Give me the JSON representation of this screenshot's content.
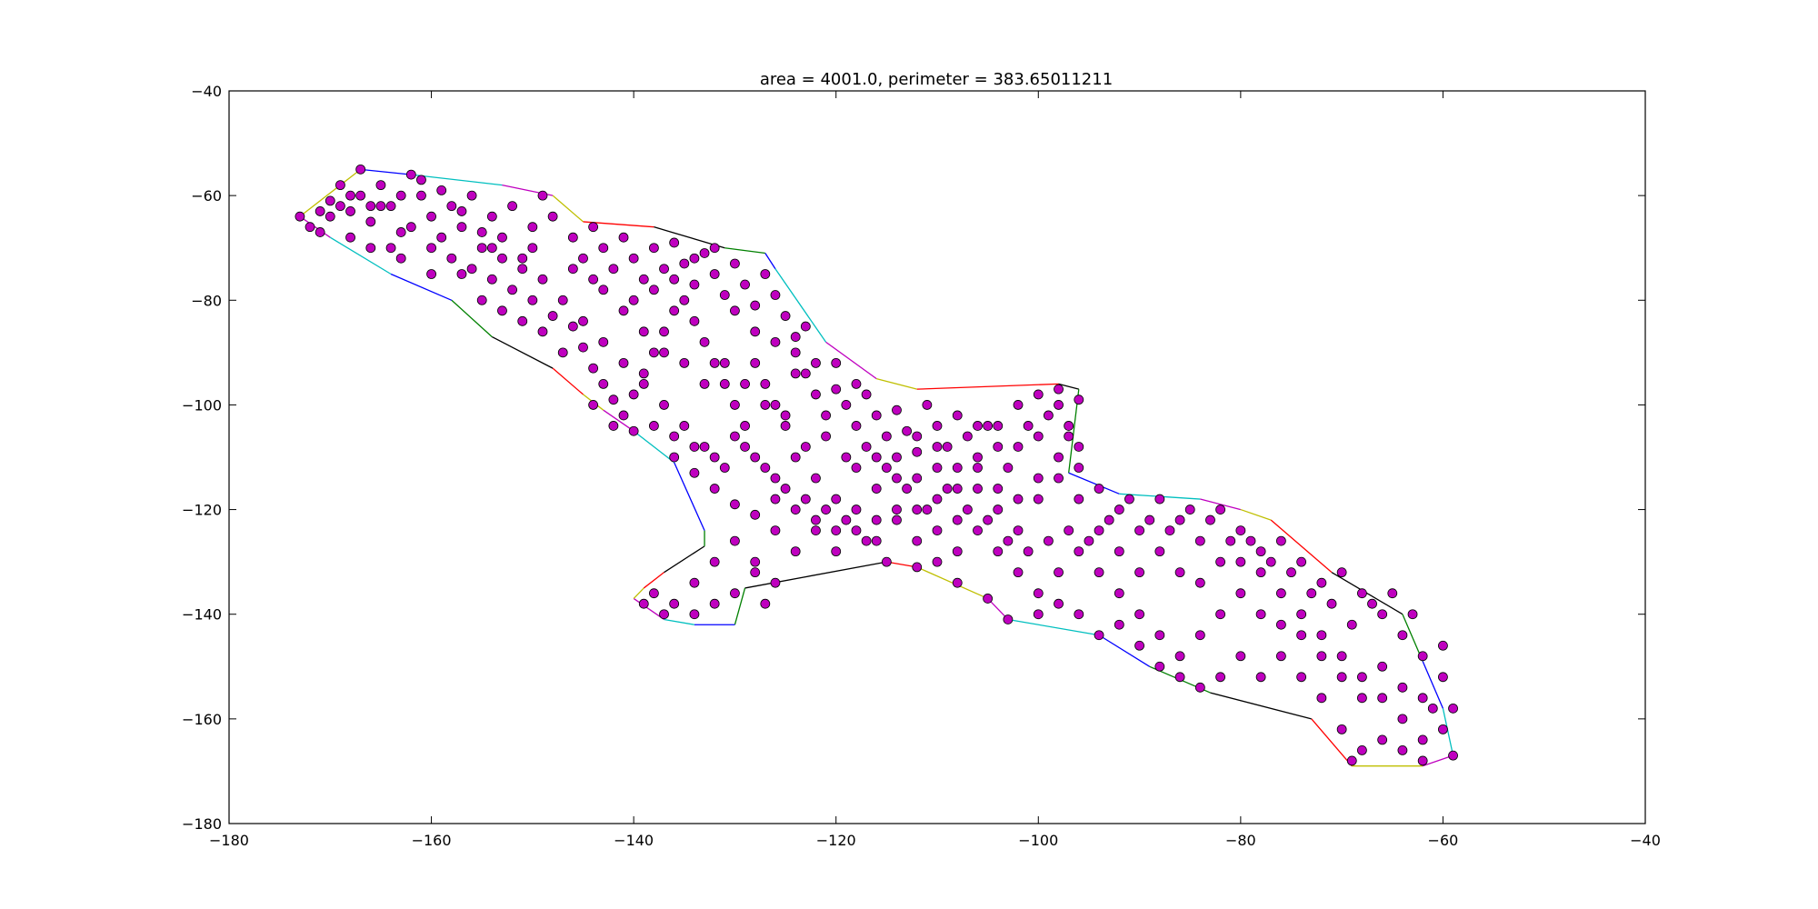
{
  "chart_data": {
    "type": "scatter",
    "title": "area = 4001.0, perimeter = 383.65011211",
    "xlabel": "",
    "ylabel": "",
    "xlim": [
      -180,
      -40
    ],
    "ylim": [
      -180,
      -40
    ],
    "xticks": [
      -180,
      -160,
      -140,
      -120,
      -100,
      -80,
      -60,
      -40
    ],
    "yticks": [
      -40,
      -60,
      -80,
      -100,
      -120,
      -140,
      -160,
      -180
    ],
    "xtick_labels": [
      "−180",
      "−160",
      "−140",
      "−120",
      "−100",
      "−80",
      "−60",
      "−40"
    ],
    "ytick_labels": [
      "−40",
      "−60",
      "−80",
      "−100",
      "−120",
      "−140",
      "−160",
      "−180"
    ],
    "grid": false,
    "point_color": "#bf00bf",
    "point_edge_color": "#000000",
    "hull_colors": [
      "#0000ff",
      "#00bfbf",
      "#bf00bf",
      "#bfbf00",
      "#ff0000",
      "#000000",
      "#008000"
    ],
    "hull": [
      [
        -167,
        -55
      ],
      [
        -162,
        -56
      ],
      [
        -153,
        -58
      ],
      [
        -148,
        -60
      ],
      [
        -145,
        -65
      ],
      [
        -138,
        -66
      ],
      [
        -131,
        -70
      ],
      [
        -127,
        -71
      ],
      [
        -126,
        -74
      ],
      [
        -121,
        -88
      ],
      [
        -116,
        -95
      ],
      [
        -112,
        -97
      ],
      [
        -98,
        -96
      ],
      [
        -96,
        -97
      ],
      [
        -97,
        -113
      ],
      [
        -92,
        -117
      ],
      [
        -84,
        -118
      ],
      [
        -80,
        -120
      ],
      [
        -77,
        -122
      ],
      [
        -71,
        -132
      ],
      [
        -64,
        -140
      ],
      [
        -62,
        -149
      ],
      [
        -60,
        -158
      ],
      [
        -59,
        -167
      ],
      [
        -62,
        -169
      ],
      [
        -69,
        -169
      ],
      [
        -73,
        -160
      ],
      [
        -83,
        -155
      ],
      [
        -89,
        -150
      ],
      [
        -94,
        -144
      ],
      [
        -103,
        -141
      ],
      [
        -105,
        -137
      ],
      [
        -112,
        -131
      ],
      [
        -115,
        -130
      ],
      [
        -129,
        -135
      ],
      [
        -130,
        -142
      ],
      [
        -134,
        -142
      ],
      [
        -137,
        -141
      ],
      [
        -140,
        -137
      ],
      [
        -139,
        -135
      ],
      [
        -137,
        -132
      ],
      [
        -133,
        -127
      ],
      [
        -133,
        -124
      ],
      [
        -136,
        -111
      ],
      [
        -140,
        -105
      ],
      [
        -143,
        -101
      ],
      [
        -145,
        -98
      ],
      [
        -148,
        -93
      ],
      [
        -154,
        -87
      ],
      [
        -158,
        -80
      ],
      [
        -164,
        -75
      ],
      [
        -170,
        -68
      ],
      [
        -173,
        -64
      ]
    ],
    "points": [
      [
        -173,
        -64
      ],
      [
        -172,
        -66
      ],
      [
        -171,
        -63
      ],
      [
        -170,
        -61
      ],
      [
        -169,
        -58
      ],
      [
        -168,
        -63
      ],
      [
        -167,
        -55
      ],
      [
        -167,
        -60
      ],
      [
        -166,
        -65
      ],
      [
        -165,
        -58
      ],
      [
        -164,
        -62
      ],
      [
        -163,
        -67
      ],
      [
        -162,
        -56
      ],
      [
        -161,
        -60
      ],
      [
        -160,
        -64
      ],
      [
        -159,
        -68
      ],
      [
        -158,
        -62
      ],
      [
        -157,
        -66
      ],
      [
        -156,
        -60
      ],
      [
        -155,
        -70
      ],
      [
        -154,
        -64
      ],
      [
        -153,
        -68
      ],
      [
        -152,
        -62
      ],
      [
        -151,
        -72
      ],
      [
        -150,
        -66
      ],
      [
        -149,
        -60
      ],
      [
        -166,
        -70
      ],
      [
        -163,
        -72
      ],
      [
        -160,
        -75
      ],
      [
        -157,
        -75
      ],
      [
        -154,
        -76
      ],
      [
        -148,
        -64
      ],
      [
        -146,
        -68
      ],
      [
        -145,
        -72
      ],
      [
        -144,
        -66
      ],
      [
        -143,
        -70
      ],
      [
        -142,
        -74
      ],
      [
        -141,
        -68
      ],
      [
        -140,
        -72
      ],
      [
        -139,
        -76
      ],
      [
        -138,
        -70
      ],
      [
        -137,
        -74
      ],
      [
        -136,
        -69
      ],
      [
        -135,
        -73
      ],
      [
        -134,
        -77
      ],
      [
        -133,
        -71
      ],
      [
        -132,
        -75
      ],
      [
        -131,
        -79
      ],
      [
        -130,
        -73
      ],
      [
        -129,
        -77
      ],
      [
        -128,
        -81
      ],
      [
        -127,
        -75
      ],
      [
        -126,
        -79
      ],
      [
        -125,
        -83
      ],
      [
        -124,
        -87
      ],
      [
        -123,
        -85
      ],
      [
        -152,
        -78
      ],
      [
        -150,
        -80
      ],
      [
        -148,
        -83
      ],
      [
        -146,
        -85
      ],
      [
        -145,
        -89
      ],
      [
        -144,
        -93
      ],
      [
        -143,
        -96
      ],
      [
        -142,
        -99
      ],
      [
        -141,
        -102
      ],
      [
        -140,
        -98
      ],
      [
        -139,
        -94
      ],
      [
        -138,
        -90
      ],
      [
        -137,
        -86
      ],
      [
        -136,
        -82
      ],
      [
        -135,
        -80
      ],
      [
        -134,
        -84
      ],
      [
        -133,
        -88
      ],
      [
        -132,
        -92
      ],
      [
        -131,
        -96
      ],
      [
        -130,
        -100
      ],
      [
        -129,
        -104
      ],
      [
        -128,
        -92
      ],
      [
        -127,
        -96
      ],
      [
        -126,
        -100
      ],
      [
        -125,
        -104
      ],
      [
        -124,
        -90
      ],
      [
        -123,
        -94
      ],
      [
        -122,
        -98
      ],
      [
        -121,
        -102
      ],
      [
        -120,
        -97
      ],
      [
        -119,
        -100
      ],
      [
        -118,
        -104
      ],
      [
        -117,
        -98
      ],
      [
        -116,
        -102
      ],
      [
        -115,
        -106
      ],
      [
        -114,
        -101
      ],
      [
        -113,
        -105
      ],
      [
        -112,
        -109
      ],
      [
        -111,
        -100
      ],
      [
        -110,
        -104
      ],
      [
        -109,
        -108
      ],
      [
        -108,
        -102
      ],
      [
        -107,
        -106
      ],
      [
        -106,
        -110
      ],
      [
        -105,
        -104
      ],
      [
        -104,
        -108
      ],
      [
        -103,
        -112
      ],
      [
        -102,
        -100
      ],
      [
        -101,
        -104
      ],
      [
        -100,
        -98
      ],
      [
        -99,
        -102
      ],
      [
        -98,
        -97
      ],
      [
        -97,
        -106
      ],
      [
        -96,
        -99
      ],
      [
        -138,
        -104
      ],
      [
        -136,
        -106
      ],
      [
        -134,
        -108
      ],
      [
        -132,
        -110
      ],
      [
        -130,
        -106
      ],
      [
        -128,
        -110
      ],
      [
        -126,
        -114
      ],
      [
        -124,
        -110
      ],
      [
        -122,
        -114
      ],
      [
        -120,
        -118
      ],
      [
        -118,
        -112
      ],
      [
        -116,
        -116
      ],
      [
        -114,
        -120
      ],
      [
        -112,
        -114
      ],
      [
        -110,
        -118
      ],
      [
        -108,
        -122
      ],
      [
        -106,
        -116
      ],
      [
        -104,
        -120
      ],
      [
        -102,
        -124
      ],
      [
        -100,
        -118
      ],
      [
        -98,
        -114
      ],
      [
        -96,
        -118
      ],
      [
        -94,
        -116
      ],
      [
        -92,
        -120
      ],
      [
        -90,
        -124
      ],
      [
        -88,
        -118
      ],
      [
        -86,
        -122
      ],
      [
        -84,
        -126
      ],
      [
        -82,
        -120
      ],
      [
        -80,
        -124
      ],
      [
        -78,
        -128
      ],
      [
        -76,
        -126
      ],
      [
        -74,
        -130
      ],
      [
        -72,
        -134
      ],
      [
        -70,
        -132
      ],
      [
        -68,
        -136
      ],
      [
        -66,
        -140
      ],
      [
        -64,
        -144
      ],
      [
        -62,
        -148
      ],
      [
        -60,
        -152
      ],
      [
        -61,
        -158
      ],
      [
        -60,
        -162
      ],
      [
        -62,
        -164
      ],
      [
        -64,
        -160
      ],
      [
        -66,
        -156
      ],
      [
        -68,
        -152
      ],
      [
        -70,
        -148
      ],
      [
        -72,
        -144
      ],
      [
        -74,
        -140
      ],
      [
        -76,
        -136
      ],
      [
        -78,
        -132
      ],
      [
        -80,
        -136
      ],
      [
        -82,
        -140
      ],
      [
        -84,
        -144
      ],
      [
        -86,
        -148
      ],
      [
        -88,
        -144
      ],
      [
        -90,
        -140
      ],
      [
        -92,
        -136
      ],
      [
        -94,
        -132
      ],
      [
        -96,
        -128
      ],
      [
        -98,
        -132
      ],
      [
        -100,
        -136
      ],
      [
        -102,
        -132
      ],
      [
        -104,
        -128
      ],
      [
        -106,
        -124
      ],
      [
        -108,
        -128
      ],
      [
        -110,
        -124
      ],
      [
        -112,
        -126
      ],
      [
        -114,
        -122
      ],
      [
        -116,
        -126
      ],
      [
        -118,
        -124
      ],
      [
        -120,
        -128
      ],
      [
        -122,
        -124
      ],
      [
        -124,
        -128
      ],
      [
        -126,
        -124
      ],
      [
        -128,
        -130
      ],
      [
        -130,
        -126
      ],
      [
        -132,
        -130
      ],
      [
        -134,
        -134
      ],
      [
        -136,
        -138
      ],
      [
        -138,
        -136
      ],
      [
        -139,
        -138
      ],
      [
        -137,
        -140
      ],
      [
        -134,
        -140
      ],
      [
        -132,
        -138
      ],
      [
        -130,
        -136
      ],
      [
        -128,
        -132
      ],
      [
        -127,
        -138
      ],
      [
        -126,
        -134
      ],
      [
        -70,
        -162
      ],
      [
        -68,
        -166
      ],
      [
        -66,
        -164
      ],
      [
        -64,
        -166
      ],
      [
        -62,
        -168
      ],
      [
        -69,
        -168
      ],
      [
        -59,
        -167
      ],
      [
        -59,
        -158
      ],
      [
        -72,
        -156
      ],
      [
        -74,
        -152
      ],
      [
        -76,
        -148
      ],
      [
        -78,
        -152
      ],
      [
        -80,
        -148
      ],
      [
        -82,
        -152
      ],
      [
        -84,
        -154
      ],
      [
        -86,
        -152
      ],
      [
        -88,
        -150
      ],
      [
        -90,
        -146
      ],
      [
        -92,
        -142
      ],
      [
        -94,
        -144
      ],
      [
        -96,
        -140
      ],
      [
        -98,
        -138
      ],
      [
        -100,
        -140
      ],
      [
        -103,
        -141
      ],
      [
        -105,
        -137
      ],
      [
        -108,
        -134
      ],
      [
        -110,
        -130
      ],
      [
        -112,
        -131
      ],
      [
        -115,
        -130
      ],
      [
        -117,
        -126
      ],
      [
        -119,
        -122
      ],
      [
        -121,
        -120
      ],
      [
        -123,
        -118
      ],
      [
        -125,
        -116
      ],
      [
        -127,
        -112
      ],
      [
        -129,
        -108
      ],
      [
        -131,
        -112
      ],
      [
        -133,
        -108
      ],
      [
        -135,
        -104
      ],
      [
        -137,
        -100
      ],
      [
        -139,
        -96
      ],
      [
        -141,
        -92
      ],
      [
        -143,
        -88
      ],
      [
        -145,
        -84
      ],
      [
        -147,
        -80
      ],
      [
        -149,
        -76
      ],
      [
        -151,
        -74
      ],
      [
        -153,
        -72
      ],
      [
        -155,
        -67
      ],
      [
        -157,
        -63
      ],
      [
        -159,
        -59
      ],
      [
        -161,
        -57
      ],
      [
        -163,
        -60
      ],
      [
        -165,
        -62
      ],
      [
        -168,
        -68
      ],
      [
        -170,
        -64
      ],
      [
        -171,
        -67
      ],
      [
        -169,
        -62
      ],
      [
        -147,
        -90
      ],
      [
        -149,
        -86
      ],
      [
        -151,
        -84
      ],
      [
        -153,
        -82
      ],
      [
        -155,
        -80
      ],
      [
        -144,
        -100
      ],
      [
        -142,
        -104
      ],
      [
        -140,
        -105
      ],
      [
        -136,
        -110
      ],
      [
        -134,
        -113
      ],
      [
        -132,
        -116
      ],
      [
        -130,
        -119
      ],
      [
        -128,
        -121
      ],
      [
        -126,
        -118
      ],
      [
        -124,
        -120
      ],
      [
        -122,
        -122
      ],
      [
        -120,
        -124
      ],
      [
        -118,
        -120
      ],
      [
        -116,
        -122
      ],
      [
        -114,
        -110
      ],
      [
        -112,
        -106
      ],
      [
        -110,
        -112
      ],
      [
        -108,
        -116
      ],
      [
        -106,
        -112
      ],
      [
        -104,
        -116
      ],
      [
        -102,
        -118
      ],
      [
        -100,
        -114
      ],
      [
        -98,
        -110
      ],
      [
        -96,
        -108
      ],
      [
        -94,
        -124
      ],
      [
        -92,
        -128
      ],
      [
        -90,
        -132
      ],
      [
        -88,
        -128
      ],
      [
        -86,
        -132
      ],
      [
        -84,
        -134
      ],
      [
        -82,
        -130
      ],
      [
        -80,
        -130
      ],
      [
        -78,
        -140
      ],
      [
        -76,
        -142
      ],
      [
        -74,
        -144
      ],
      [
        -72,
        -148
      ],
      [
        -70,
        -152
      ],
      [
        -68,
        -156
      ],
      [
        -66,
        -150
      ],
      [
        -64,
        -154
      ],
      [
        -62,
        -156
      ],
      [
        -60,
        -146
      ],
      [
        -63,
        -140
      ],
      [
        -65,
        -136
      ],
      [
        -67,
        -138
      ],
      [
        -69,
        -142
      ],
      [
        -71,
        -138
      ],
      [
        -73,
        -136
      ],
      [
        -75,
        -132
      ],
      [
        -77,
        -130
      ],
      [
        -79,
        -126
      ],
      [
        -81,
        -126
      ],
      [
        -83,
        -122
      ],
      [
        -85,
        -120
      ],
      [
        -87,
        -124
      ],
      [
        -89,
        -122
      ],
      [
        -91,
        -118
      ],
      [
        -93,
        -122
      ],
      [
        -95,
        -126
      ],
      [
        -97,
        -124
      ],
      [
        -99,
        -126
      ],
      [
        -101,
        -128
      ],
      [
        -103,
        -126
      ],
      [
        -105,
        -122
      ],
      [
        -107,
        -120
      ],
      [
        -109,
        -116
      ],
      [
        -111,
        -120
      ],
      [
        -113,
        -116
      ],
      [
        -115,
        -112
      ],
      [
        -117,
        -108
      ],
      [
        -119,
        -110
      ],
      [
        -121,
        -106
      ],
      [
        -123,
        -108
      ],
      [
        -125,
        -102
      ],
      [
        -127,
        -100
      ],
      [
        -129,
        -96
      ],
      [
        -131,
        -92
      ],
      [
        -133,
        -96
      ],
      [
        -135,
        -92
      ],
      [
        -137,
        -90
      ],
      [
        -139,
        -86
      ],
      [
        -141,
        -82
      ],
      [
        -143,
        -78
      ],
      [
        -140,
        -80
      ],
      [
        -138,
        -78
      ],
      [
        -136,
        -76
      ],
      [
        -134,
        -72
      ],
      [
        -132,
        -70
      ],
      [
        -130,
        -82
      ],
      [
        -128,
        -86
      ],
      [
        -126,
        -88
      ],
      [
        -124,
        -94
      ],
      [
        -122,
        -92
      ],
      [
        -120,
        -92
      ],
      [
        -118,
        -96
      ],
      [
        -116,
        -110
      ],
      [
        -114,
        -114
      ],
      [
        -112,
        -120
      ],
      [
        -110,
        -108
      ],
      [
        -108,
        -112
      ],
      [
        -106,
        -104
      ],
      [
        -104,
        -104
      ],
      [
        -102,
        -108
      ],
      [
        -100,
        -106
      ],
      [
        -98,
        -100
      ],
      [
        -97,
        -104
      ],
      [
        -96,
        -112
      ],
      [
        -160,
        -70
      ],
      [
        -162,
        -66
      ],
      [
        -164,
        -70
      ],
      [
        -166,
        -62
      ],
      [
        -168,
        -60
      ],
      [
        -158,
        -72
      ],
      [
        -156,
        -74
      ],
      [
        -154,
        -70
      ],
      [
        -150,
        -70
      ],
      [
        -146,
        -74
      ],
      [
        -144,
        -76
      ]
    ]
  }
}
